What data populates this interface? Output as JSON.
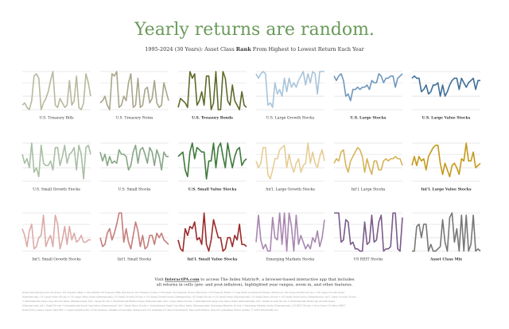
{
  "title": "Yearly returns are random.",
  "subtitle": [
    "1995-2024 (30 Years): Asset Class ",
    "Rank",
    " From Highest to Lowest Return Each Year"
  ],
  "visit": [
    "Visit ",
    "InteractPA.com",
    " to access The Index Matrix®, a browser-based interactive app that includes",
    "all returns in cells (pre- and post-inflation), highlighted year ranges, zoom in, and other features."
  ],
  "footnote": [
    "Index Descriptions and (Sources): US Treasury Bills = One-Month US Treasury Bills (Ibbotson); US Treasury Notes = Five-Year US Treasury Notes (Ibbotson); US Treasury Bonds = Long-Term Government Bonds (Ibbotson); US Large Growth Stocks = US Large Growth Index",
    "(Dimensional); US Large Value Stocks = US Large Value Index (Dimensional); US Small Growth Stocks = US Small Growth Index (Dimensional); US Small Stocks = US Small Index (Dimensional); US Small Value Stocks = US Small Value Index (Dimensional); Int'l. Large Growth Stocks",
    "= International Large Cap Growth Index (Dimensional); Int'l. Large Stocks = International Market Index (Dimensional); Int'l. Large Value Stocks = International Large Cap Value Index (Dimensional); Int'l. Small Growth Stocks = International Small Cap Growth Index",
    "(Dimensional); Int'l. Small Stocks = International Small Cap Index (Dimensional); Int'l. Small Value Stocks = International Small Cap Value Index (Dimensional); Emerging Markets Stocks = Emerging Markets Index (Dimensional); US REIT Stocks = Dow Jones US Select REIT",
    "Index (Dow Jones); Asset Class Mix = equal weighted mix of the indexes, rebalanced annually. Indexes are not available for direct investment. Past performance does not guarantee future results. © 2025 InteractPA, Inc."
  ],
  "chart_data": [
    {
      "type": "line",
      "title": "U.S. Treasury Bills",
      "bold": false,
      "color": "#b9b89e",
      "ylim": [
        18,
        1
      ],
      "yticks": [
        1,
        6,
        12,
        18
      ],
      "values": [
        16,
        15,
        17,
        18,
        14,
        3,
        2,
        4,
        18,
        15,
        13,
        10,
        5,
        1,
        16,
        17,
        13,
        15,
        17,
        16,
        5,
        16,
        14,
        3,
        17,
        18,
        15,
        2,
        6,
        12
      ]
    },
    {
      "type": "line",
      "title": "U.S. Treasury Notes",
      "bold": false,
      "color": "#a8a68a",
      "ylim": [
        18,
        1
      ],
      "yticks": [
        1,
        6,
        12,
        18
      ],
      "values": [
        15,
        14,
        12,
        16,
        18,
        2,
        3,
        1,
        17,
        16,
        12,
        14,
        6,
        2,
        17,
        16,
        4,
        17,
        16,
        9,
        8,
        15,
        13,
        5,
        15,
        17,
        16,
        6,
        10,
        14
      ]
    },
    {
      "type": "line",
      "title": "U.S. Treasury Bonds",
      "bold": true,
      "color": "#5d6b2a",
      "ylim": [
        18,
        1
      ],
      "yticks": [
        1,
        6,
        12,
        18
      ],
      "values": [
        17,
        13,
        14,
        15,
        17,
        1,
        4,
        2,
        16,
        14,
        10,
        16,
        3,
        3,
        18,
        15,
        1,
        18,
        18,
        1,
        4,
        14,
        16,
        7,
        14,
        16,
        18,
        10,
        16,
        17
      ]
    },
    {
      "type": "line",
      "title": "U.S. Large Growth Stocks",
      "bold": false,
      "color": "#a9c4d9",
      "ylim": [
        18,
        1
      ],
      "yticks": [
        1,
        6,
        12,
        18
      ],
      "values": [
        2,
        4,
        2,
        1,
        2,
        16,
        15,
        17,
        6,
        11,
        9,
        12,
        4,
        10,
        4,
        8,
        6,
        8,
        5,
        3,
        1,
        7,
        2,
        6,
        1,
        2,
        11,
        1,
        1,
        1
      ]
    },
    {
      "type": "line",
      "title": "U.S. Large Stocks",
      "bold": true,
      "color": "#6f97bd",
      "ylim": [
        18,
        1
      ],
      "yticks": [
        1,
        6,
        12,
        18
      ],
      "values": [
        3,
        5,
        3,
        2,
        5,
        12,
        11,
        14,
        9,
        9,
        8,
        9,
        8,
        8,
        7,
        9,
        5,
        6,
        6,
        2,
        3,
        6,
        4,
        4,
        3,
        3,
        8,
        4,
        3,
        2
      ]
    },
    {
      "type": "line",
      "title": "U.S. Large Value Stocks",
      "bold": true,
      "color": "#3f6f98",
      "ylim": [
        18,
        1
      ],
      "yticks": [
        1,
        6,
        12,
        18
      ],
      "values": [
        4,
        3,
        4,
        4,
        10,
        9,
        7,
        11,
        10,
        7,
        7,
        6,
        12,
        7,
        12,
        10,
        7,
        5,
        4,
        4,
        9,
        4,
        6,
        8,
        6,
        5,
        4,
        9,
        5,
        5
      ]
    },
    {
      "type": "line",
      "title": "U.S. Small Growth Stocks",
      "bold": false,
      "color": "#a9bfa4",
      "ylim": [
        18,
        1
      ],
      "yticks": [
        1,
        6,
        12,
        18
      ],
      "values": [
        6,
        10,
        8,
        12,
        1,
        14,
        12,
        16,
        2,
        10,
        11,
        11,
        9,
        13,
        3,
        3,
        11,
        7,
        2,
        10,
        6,
        5,
        3,
        13,
        2,
        6,
        17,
        3,
        2,
        6
      ]
    },
    {
      "type": "line",
      "title": "U.S. Small Stocks",
      "bold": false,
      "color": "#88a786",
      "ylim": [
        18,
        1
      ],
      "yticks": [
        1,
        6,
        12,
        18
      ],
      "values": [
        5,
        9,
        6,
        11,
        7,
        10,
        9,
        10,
        4,
        6,
        6,
        7,
        13,
        11,
        5,
        2,
        10,
        4,
        3,
        6,
        10,
        3,
        5,
        11,
        4,
        7,
        13,
        5,
        7,
        7
      ]
    },
    {
      "type": "line",
      "title": "U.S. Small Value Stocks",
      "bold": true,
      "color": "#3f7a3c",
      "ylim": [
        18,
        1
      ],
      "yticks": [
        1,
        6,
        12,
        18
      ],
      "values": [
        7,
        6,
        5,
        13,
        16,
        5,
        1,
        8,
        3,
        4,
        5,
        5,
        17,
        9,
        9,
        1,
        12,
        3,
        1,
        7,
        12,
        1,
        7,
        12,
        7,
        4,
        3,
        11,
        9,
        8
      ]
    },
    {
      "type": "line",
      "title": "Int'l. Large Growth Stocks",
      "bold": false,
      "color": "#e6cd96",
      "ylim": [
        18,
        1
      ],
      "yticks": [
        1,
        6,
        12,
        18
      ],
      "values": [
        9,
        12,
        10,
        3,
        3,
        15,
        17,
        13,
        8,
        8,
        4,
        3,
        2,
        12,
        6,
        11,
        14,
        10,
        8,
        14,
        11,
        10,
        1,
        10,
        5,
        10,
        12,
        7,
        4,
        9
      ]
    },
    {
      "type": "line",
      "title": "Int'l. Large Stocks",
      "bold": false,
      "color": "#d8b45a",
      "ylim": [
        18,
        1
      ],
      "yticks": [
        1,
        6,
        12,
        18
      ],
      "values": [
        10,
        8,
        9,
        5,
        4,
        11,
        14,
        9,
        7,
        5,
        3,
        4,
        7,
        14,
        8,
        12,
        15,
        9,
        9,
        13,
        13,
        9,
        8,
        9,
        8,
        8,
        7,
        8,
        8,
        11
      ]
    },
    {
      "type": "line",
      "title": "Int'l. Large Value Stocks",
      "bold": true,
      "color": "#c49a1c",
      "ylim": [
        18,
        1
      ],
      "yticks": [
        1,
        6,
        12,
        18
      ],
      "values": [
        11,
        7,
        11,
        7,
        9,
        8,
        13,
        7,
        5,
        3,
        2,
        2,
        10,
        15,
        10,
        13,
        16,
        11,
        10,
        12,
        15,
        8,
        9,
        1,
        9,
        9,
        5,
        12,
        11,
        10
      ]
    },
    {
      "type": "line",
      "title": "Int'l. Small Growth Stocks",
      "bold": false,
      "color": "#dcaaa8",
      "ylim": [
        18,
        1
      ],
      "yticks": [
        1,
        6,
        12,
        18
      ],
      "values": [
        8,
        11,
        16,
        9,
        6,
        17,
        16,
        12,
        11,
        2,
        16,
        13,
        11,
        16,
        2,
        6,
        17,
        13,
        7,
        15,
        7,
        13,
        10,
        14,
        13,
        11,
        14,
        14,
        13,
        13
      ]
    },
    {
      "type": "line",
      "title": "Int'l. Small Stocks",
      "bold": false,
      "color": "#c57c7a",
      "ylim": [
        18,
        1
      ],
      "yticks": [
        1,
        6,
        12,
        18
      ],
      "values": [
        12,
        16,
        15,
        10,
        8,
        13,
        10,
        6,
        1,
        1,
        14,
        8,
        14,
        17,
        11,
        5,
        9,
        16,
        11,
        17,
        16,
        11,
        11,
        15,
        10,
        12,
        10,
        13,
        14,
        15
      ]
    },
    {
      "type": "line",
      "title": "Int'l. Small Value Stocks",
      "bold": true,
      "color": "#9c2a2a",
      "ylim": [
        18,
        1
      ],
      "yticks": [
        1,
        6,
        12,
        18
      ],
      "values": [
        13,
        17,
        18,
        8,
        11,
        7,
        8,
        5,
        13,
        12,
        15,
        1,
        15,
        18,
        13,
        4,
        8,
        12,
        12,
        18,
        17,
        12,
        12,
        16,
        11,
        13,
        6,
        15,
        15,
        16
      ]
    },
    {
      "type": "line",
      "title": "Emerging Markets Stocks",
      "bold": false,
      "color": "#a888b0",
      "ylim": [
        18,
        1
      ],
      "yticks": [
        1,
        6,
        12,
        18
      ],
      "values": [
        14,
        2,
        13,
        17,
        15,
        18,
        18,
        3,
        12,
        13,
        1,
        15,
        1,
        18,
        1,
        7,
        18,
        2,
        15,
        11,
        14,
        17,
        15,
        17,
        12,
        14,
        9,
        16,
        12,
        4
      ]
    },
    {
      "type": "line",
      "title": "US REIT Stocks",
      "bold": false,
      "color": "#7a5a8a",
      "ylim": [
        18,
        1
      ],
      "yticks": [
        1,
        6,
        12,
        18
      ],
      "values": [
        1,
        1,
        1,
        14,
        13,
        4,
        5,
        15,
        14,
        17,
        17,
        18,
        18,
        5,
        15,
        14,
        2,
        14,
        13,
        5,
        2,
        18,
        17,
        17,
        16,
        1,
        1,
        17,
        18,
        3
      ]
    },
    {
      "type": "line",
      "title": "Asset Class Mix",
      "bold": true,
      "color": "#777777",
      "ylim": [
        18,
        1
      ],
      "yticks": [
        1,
        6,
        12,
        18
      ],
      "values": [
        18,
        18,
        7,
        6,
        12,
        6,
        6,
        18,
        15,
        18,
        18,
        17,
        16,
        4,
        14,
        18,
        3,
        1,
        14,
        8,
        18,
        2,
        18,
        2,
        18,
        15,
        2,
        18,
        17,
        18
      ]
    }
  ]
}
